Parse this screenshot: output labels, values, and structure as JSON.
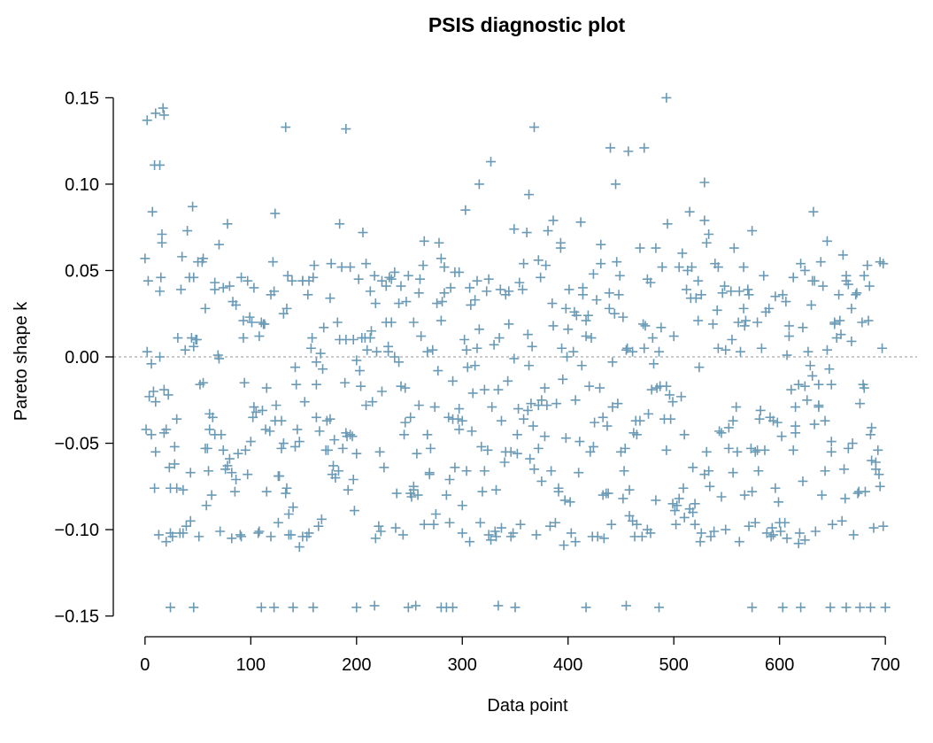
{
  "chart_data": {
    "type": "scatter",
    "title": "PSIS diagnostic plot",
    "xlabel": "Data point",
    "ylabel": "Pareto shape k",
    "xlim": [
      -30,
      730
    ],
    "ylim": [
      -0.162,
      0.162
    ],
    "x_ticks": [
      0,
      100,
      200,
      300,
      400,
      500,
      600,
      700
    ],
    "x_tick_labels": [
      "0",
      "100",
      "200",
      "300",
      "400",
      "500",
      "600",
      "700"
    ],
    "y_ticks": [
      -0.15,
      -0.1,
      -0.05,
      0.0,
      0.05,
      0.1,
      0.15
    ],
    "y_tick_labels": [
      "−0.15",
      "−0.10",
      "−0.05",
      "0.00",
      "0.05",
      "0.10",
      "0.15"
    ],
    "reference_line_y": 0,
    "grid": false,
    "marker": "plus",
    "colors": {
      "points": "#6a9ab5",
      "reference_line": "#aaaaaa",
      "axes": "#000000"
    },
    "highlighted_points": [
      {
        "x": 2,
        "y": 0.137
      },
      {
        "x": 10,
        "y": 0.141
      },
      {
        "x": 17,
        "y": 0.144
      },
      {
        "x": 18,
        "y": 0.14
      },
      {
        "x": 9,
        "y": 0.111
      },
      {
        "x": 14,
        "y": 0.111
      },
      {
        "x": 7,
        "y": 0.084
      },
      {
        "x": 16,
        "y": 0.071
      },
      {
        "x": 133,
        "y": 0.133
      },
      {
        "x": 190,
        "y": 0.132
      },
      {
        "x": 368,
        "y": 0.133
      },
      {
        "x": 493,
        "y": 0.15
      },
      {
        "x": 440,
        "y": 0.121
      },
      {
        "x": 472,
        "y": 0.121
      },
      {
        "x": 457,
        "y": 0.119
      },
      {
        "x": 327,
        "y": 0.113
      },
      {
        "x": 445,
        "y": 0.1
      },
      {
        "x": 316,
        "y": 0.1
      },
      {
        "x": 529,
        "y": 0.101
      },
      {
        "x": 45,
        "y": 0.087
      },
      {
        "x": 123,
        "y": 0.083
      },
      {
        "x": 303,
        "y": 0.085
      },
      {
        "x": 632,
        "y": 0.084
      },
      {
        "x": 515,
        "y": 0.084
      },
      {
        "x": 363,
        "y": 0.094
      },
      {
        "x": 24,
        "y": -0.145
      },
      {
        "x": 46,
        "y": -0.145
      },
      {
        "x": 110,
        "y": -0.145
      },
      {
        "x": 122,
        "y": -0.145
      },
      {
        "x": 140,
        "y": -0.145
      },
      {
        "x": 159,
        "y": -0.145
      },
      {
        "x": 200,
        "y": -0.145
      },
      {
        "x": 217,
        "y": -0.144
      },
      {
        "x": 249,
        "y": -0.145
      },
      {
        "x": 256,
        "y": -0.144
      },
      {
        "x": 280,
        "y": -0.145
      },
      {
        "x": 285,
        "y": -0.145
      },
      {
        "x": 291,
        "y": -0.145
      },
      {
        "x": 334,
        "y": -0.144
      },
      {
        "x": 350,
        "y": -0.145
      },
      {
        "x": 417,
        "y": -0.145
      },
      {
        "x": 455,
        "y": -0.144
      },
      {
        "x": 486,
        "y": -0.145
      },
      {
        "x": 574,
        "y": -0.145
      },
      {
        "x": 603,
        "y": -0.145
      },
      {
        "x": 620,
        "y": -0.145
      },
      {
        "x": 648,
        "y": -0.145
      },
      {
        "x": 663,
        "y": -0.145
      },
      {
        "x": 676,
        "y": -0.145
      },
      {
        "x": 686,
        "y": -0.145
      },
      {
        "x": 700,
        "y": -0.145
      },
      {
        "x": 396,
        "y": -0.109
      },
      {
        "x": 624,
        "y": -0.106
      },
      {
        "x": 525,
        "y": -0.107
      },
      {
        "x": 566,
        "y": 0.028
      },
      {
        "x": 398,
        "y": 0.028
      },
      {
        "x": 134,
        "y": 0.028
      },
      {
        "x": 57,
        "y": 0.028
      }
    ],
    "points_seed": 20240611,
    "points_count": 702
  }
}
